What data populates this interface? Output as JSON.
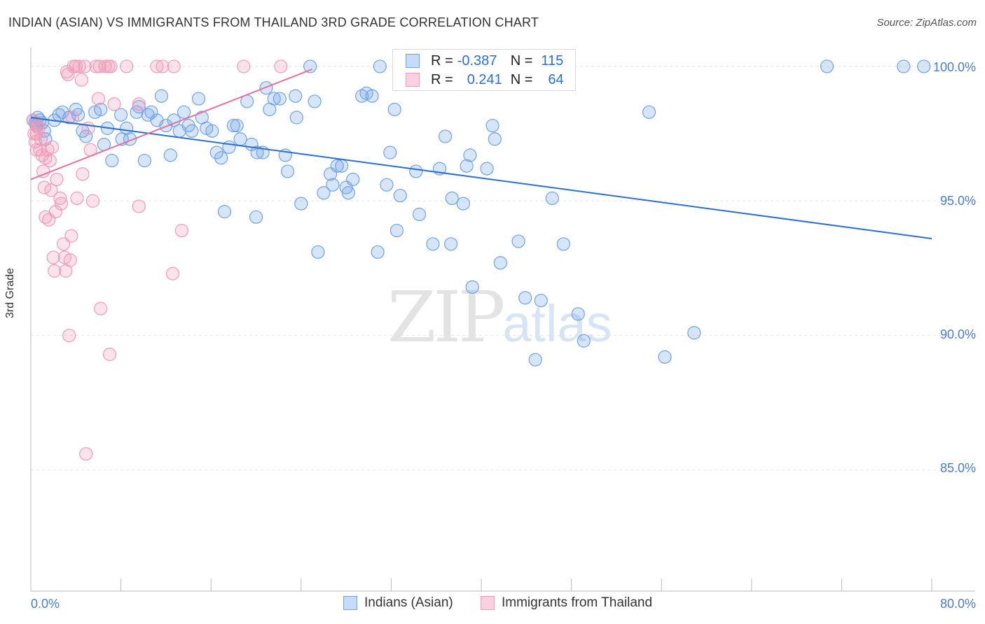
{
  "header": {
    "title": "INDIAN (ASIAN) VS IMMIGRANTS FROM THAILAND 3RD GRADE CORRELATION CHART",
    "source": "Source: ZipAtlas.com"
  },
  "watermark": {
    "zip": "ZIP",
    "atlas": "atlas"
  },
  "legend": {
    "rows": [
      {
        "r_label": "R =",
        "r_value": "-0.387",
        "n_label": "N =",
        "n_value": "115"
      },
      {
        "r_label": "R =",
        "r_value": "0.241",
        "n_label": "N =",
        "n_value": "64"
      }
    ]
  },
  "chart_data": {
    "type": "scatter",
    "title": "INDIAN (ASIAN) VS IMMIGRANTS FROM THAILAND 3RD GRADE CORRELATION CHART",
    "xlabel": "",
    "ylabel": "3rd Grade",
    "xlim": [
      0,
      80
    ],
    "ylim": [
      80.5,
      100.7
    ],
    "x_tick_labels": [
      "0.0%",
      "80.0%"
    ],
    "y_ticks": [
      85,
      90,
      95,
      100
    ],
    "y_tick_labels": [
      "85.0%",
      "90.0%",
      "95.0%",
      "100.0%"
    ],
    "colors": {
      "indians": "#6fa3e6",
      "thailand": "#f29ab8",
      "indians_line": "#2d6fd0",
      "thailand_line": "#e8709a"
    },
    "series": [
      {
        "name": "Indians (Asian)",
        "r": -0.387,
        "n": 115,
        "trend": {
          "x": [
            0,
            80
          ],
          "y": [
            98.1,
            93.6
          ]
        },
        "points": [
          [
            0.2,
            98.0
          ],
          [
            0.4,
            97.9
          ],
          [
            0.5,
            97.8
          ],
          [
            0.6,
            98.1
          ],
          [
            0.8,
            98.0
          ],
          [
            1.0,
            97.9
          ],
          [
            1.2,
            97.6
          ],
          [
            1.3,
            97.3
          ],
          [
            2.1,
            98.0
          ],
          [
            2.5,
            98.2
          ],
          [
            2.8,
            98.3
          ],
          [
            3.4,
            98.1
          ],
          [
            4.0,
            98.4
          ],
          [
            4.2,
            98.2
          ],
          [
            4.6,
            97.6
          ],
          [
            4.9,
            97.4
          ],
          [
            5.7,
            98.3
          ],
          [
            6.2,
            98.4
          ],
          [
            6.5,
            97.1
          ],
          [
            6.8,
            97.7
          ],
          [
            7.2,
            96.5
          ],
          [
            8.0,
            98.2
          ],
          [
            8.1,
            97.3
          ],
          [
            8.5,
            97.7
          ],
          [
            8.8,
            97.3
          ],
          [
            9.4,
            98.3
          ],
          [
            9.6,
            98.5
          ],
          [
            10.1,
            96.5
          ],
          [
            10.4,
            98.2
          ],
          [
            10.7,
            98.3
          ],
          [
            11.2,
            98.0
          ],
          [
            11.6,
            98.9
          ],
          [
            12.0,
            97.8
          ],
          [
            12.4,
            96.7
          ],
          [
            12.7,
            98.0
          ],
          [
            13.2,
            97.6
          ],
          [
            13.6,
            98.3
          ],
          [
            14.0,
            97.8
          ],
          [
            14.3,
            97.6
          ],
          [
            14.9,
            98.8
          ],
          [
            15.2,
            98.1
          ],
          [
            15.6,
            97.7
          ],
          [
            16.1,
            97.6
          ],
          [
            16.5,
            96.8
          ],
          [
            16.9,
            96.6
          ],
          [
            17.2,
            94.6
          ],
          [
            17.6,
            97.0
          ],
          [
            18.0,
            97.8
          ],
          [
            18.3,
            97.8
          ],
          [
            18.6,
            97.3
          ],
          [
            19.2,
            98.7
          ],
          [
            19.6,
            97.1
          ],
          [
            20.0,
            94.4
          ],
          [
            20.1,
            96.8
          ],
          [
            20.6,
            96.8
          ],
          [
            20.9,
            99.2
          ],
          [
            21.2,
            98.4
          ],
          [
            21.6,
            98.8
          ],
          [
            22.1,
            98.8
          ],
          [
            22.6,
            96.7
          ],
          [
            22.8,
            96.1
          ],
          [
            23.5,
            98.9
          ],
          [
            23.6,
            98.1
          ],
          [
            24.0,
            94.9
          ],
          [
            24.8,
            100.0
          ],
          [
            25.2,
            98.7
          ],
          [
            25.5,
            93.1
          ],
          [
            26.0,
            95.3
          ],
          [
            26.6,
            96.0
          ],
          [
            26.8,
            95.6
          ],
          [
            27.2,
            96.3
          ],
          [
            27.6,
            96.3
          ],
          [
            28.0,
            95.5
          ],
          [
            28.2,
            95.3
          ],
          [
            28.6,
            95.8
          ],
          [
            29.4,
            98.9
          ],
          [
            29.8,
            99.0
          ],
          [
            30.3,
            98.9
          ],
          [
            30.8,
            93.1
          ],
          [
            31.0,
            100.0
          ],
          [
            31.6,
            95.6
          ],
          [
            31.9,
            96.8
          ],
          [
            32.5,
            93.9
          ],
          [
            32.8,
            95.2
          ],
          [
            34.2,
            96.1
          ],
          [
            34.5,
            94.5
          ],
          [
            35.7,
            93.4
          ],
          [
            36.3,
            96.2
          ],
          [
            36.8,
            97.4
          ],
          [
            37.3,
            93.4
          ],
          [
            37.4,
            95.1
          ],
          [
            38.4,
            94.9
          ],
          [
            38.7,
            96.3
          ],
          [
            39.0,
            96.7
          ],
          [
            39.2,
            91.8
          ],
          [
            40.5,
            96.2
          ],
          [
            41.0,
            97.8
          ],
          [
            41.2,
            97.3
          ],
          [
            41.7,
            92.7
          ],
          [
            43.3,
            93.5
          ],
          [
            43.9,
            91.4
          ],
          [
            44.8,
            89.1
          ],
          [
            45.3,
            91.3
          ],
          [
            46.3,
            95.1
          ],
          [
            47.3,
            93.4
          ],
          [
            48.6,
            90.8
          ],
          [
            49.1,
            89.8
          ],
          [
            54.9,
            98.3
          ],
          [
            56.3,
            89.2
          ],
          [
            58.9,
            90.1
          ],
          [
            70.7,
            100.0
          ],
          [
            77.5,
            100.0
          ],
          [
            79.3,
            100.0
          ],
          [
            32.3,
            98.4
          ]
        ]
      },
      {
        "name": "Immigrants from Thailand",
        "r": 0.241,
        "n": 64,
        "trend": {
          "x": [
            0,
            25.0
          ],
          "y": [
            95.8,
            99.9
          ]
        },
        "points": [
          [
            0.2,
            98.0
          ],
          [
            0.3,
            97.5
          ],
          [
            0.4,
            97.2
          ],
          [
            0.5,
            96.9
          ],
          [
            0.6,
            97.8
          ],
          [
            0.7,
            97.7
          ],
          [
            0.8,
            96.9
          ],
          [
            0.9,
            97.3
          ],
          [
            1.0,
            96.7
          ],
          [
            1.1,
            96.1
          ],
          [
            1.2,
            95.5
          ],
          [
            1.3,
            96.6
          ],
          [
            1.3,
            94.4
          ],
          [
            1.5,
            96.9
          ],
          [
            1.6,
            94.3
          ],
          [
            1.7,
            96.5
          ],
          [
            1.8,
            95.4
          ],
          [
            2.0,
            92.9
          ],
          [
            2.1,
            92.4
          ],
          [
            2.2,
            94.6
          ],
          [
            2.6,
            95.1
          ],
          [
            2.7,
            94.9
          ],
          [
            2.9,
            93.4
          ],
          [
            3.0,
            92.9
          ],
          [
            3.1,
            92.4
          ],
          [
            3.2,
            99.8
          ],
          [
            3.3,
            99.7
          ],
          [
            3.4,
            90.0
          ],
          [
            3.5,
            92.8
          ],
          [
            3.6,
            93.7
          ],
          [
            3.7,
            98.1
          ],
          [
            3.8,
            100.0
          ],
          [
            4.0,
            100.0
          ],
          [
            4.1,
            95.1
          ],
          [
            4.3,
            100.0
          ],
          [
            4.5,
            99.5
          ],
          [
            4.6,
            96.0
          ],
          [
            4.8,
            100.0
          ],
          [
            5.3,
            96.9
          ],
          [
            5.5,
            95.0
          ],
          [
            5.8,
            100.0
          ],
          [
            6.0,
            98.8
          ],
          [
            6.1,
            100.0
          ],
          [
            6.2,
            91.0
          ],
          [
            6.6,
            100.0
          ],
          [
            6.9,
            100.0
          ],
          [
            7.0,
            89.3
          ],
          [
            7.1,
            100.0
          ],
          [
            7.4,
            98.6
          ],
          [
            8.5,
            100.0
          ],
          [
            9.6,
            98.6
          ],
          [
            9.6,
            94.8
          ],
          [
            11.2,
            100.0
          ],
          [
            11.7,
            100.0
          ],
          [
            12.6,
            92.3
          ],
          [
            12.7,
            100.0
          ],
          [
            13.4,
            93.9
          ],
          [
            18.9,
            100.0
          ],
          [
            22.2,
            100.0
          ],
          [
            4.9,
            85.6
          ],
          [
            1.9,
            97.0
          ],
          [
            0.5,
            97.5
          ],
          [
            2.3,
            95.8
          ],
          [
            5.1,
            97.7
          ]
        ]
      }
    ]
  }
}
